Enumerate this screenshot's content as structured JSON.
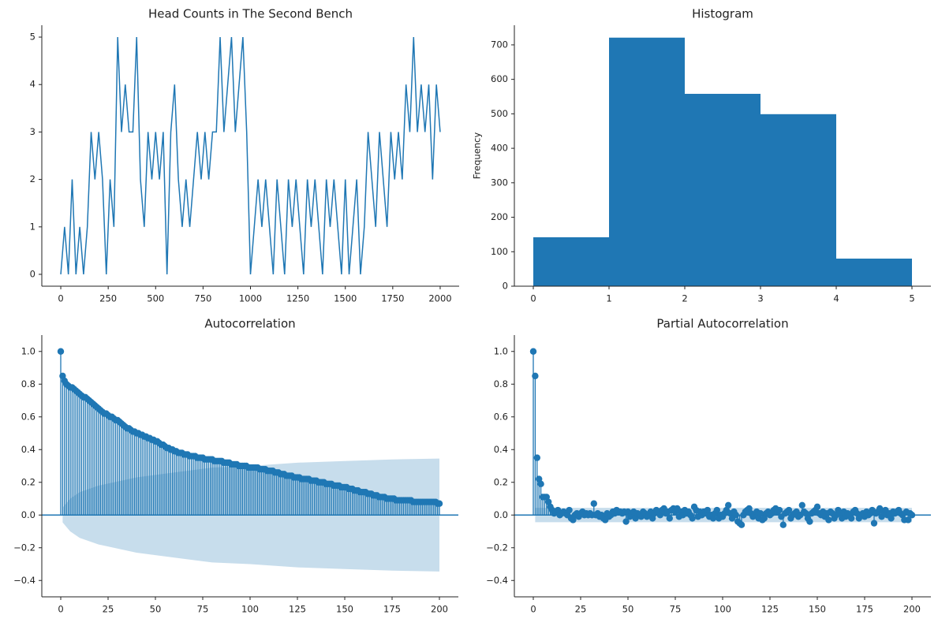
{
  "chart_data": [
    {
      "type": "line",
      "title": "Head Counts in The Second Bench",
      "color": "#1f77b4",
      "x": [
        0,
        20,
        40,
        60,
        80,
        100,
        120,
        140,
        160,
        180,
        200,
        220,
        240,
        260,
        280,
        300,
        320,
        340,
        360,
        380,
        400,
        420,
        440,
        460,
        480,
        500,
        520,
        540,
        560,
        580,
        600,
        620,
        640,
        660,
        680,
        700,
        720,
        740,
        760,
        780,
        800,
        820,
        840,
        860,
        880,
        900,
        920,
        940,
        960,
        980,
        1000,
        1020,
        1040,
        1060,
        1080,
        1100,
        1120,
        1140,
        1160,
        1180,
        1200,
        1220,
        1240,
        1260,
        1280,
        1300,
        1320,
        1340,
        1360,
        1380,
        1400,
        1420,
        1440,
        1460,
        1480,
        1500,
        1520,
        1540,
        1560,
        1580,
        1600,
        1620,
        1640,
        1660,
        1680,
        1700,
        1720,
        1740,
        1760,
        1780,
        1800,
        1820,
        1840,
        1860,
        1880,
        1900,
        1920,
        1940,
        1960,
        1980,
        2000
      ],
      "values": [
        0,
        1,
        0,
        2,
        0,
        1,
        0,
        1,
        3,
        2,
        3,
        2,
        0,
        2,
        1,
        5,
        3,
        4,
        3,
        3,
        5,
        2,
        1,
        3,
        2,
        3,
        2,
        3,
        0,
        3,
        4,
        2,
        1,
        2,
        1,
        2,
        3,
        2,
        3,
        2,
        3,
        3,
        5,
        3,
        4,
        5,
        3,
        4,
        5,
        3,
        0,
        1,
        2,
        1,
        2,
        1,
        0,
        2,
        1,
        0,
        2,
        1,
        2,
        1,
        0,
        2,
        1,
        2,
        1,
        0,
        2,
        1,
        2,
        1,
        0,
        2,
        0,
        1,
        2,
        0,
        1,
        3,
        2,
        1,
        3,
        2,
        1,
        3,
        2,
        3,
        2,
        4,
        3,
        5,
        3,
        4,
        3,
        4,
        2,
        4,
        3
      ],
      "xlim": [
        -100,
        2100
      ],
      "xticks": [
        0,
        250,
        500,
        750,
        1000,
        1250,
        1500,
        1750,
        2000
      ],
      "ylim": [
        -0.25,
        5.25
      ],
      "yticks": [
        0,
        1,
        2,
        3,
        4,
        5
      ]
    },
    {
      "type": "histogram",
      "title": "Histogram",
      "ylabel": "Frequency",
      "color": "#1f77b4",
      "bins": [
        0,
        1,
        2,
        3,
        4,
        5
      ],
      "values": [
        142,
        721,
        558,
        499,
        80
      ],
      "xlim": [
        -0.25,
        5.25
      ],
      "xticks": [
        0,
        1,
        2,
        3,
        4,
        5
      ],
      "ylim": [
        0,
        757
      ],
      "yticks": [
        0,
        100,
        200,
        300,
        400,
        500,
        600,
        700
      ]
    },
    {
      "type": "stem",
      "title": "Autocorrelation",
      "color": "#1f77b4",
      "x": [
        0,
        1,
        2,
        3,
        4,
        5,
        6,
        7,
        8,
        9,
        10,
        11,
        12,
        13,
        14,
        15,
        16,
        17,
        18,
        19,
        20,
        21,
        22,
        23,
        24,
        25,
        26,
        27,
        28,
        29,
        30,
        31,
        32,
        33,
        34,
        35,
        36,
        37,
        38,
        39,
        40,
        41,
        42,
        43,
        44,
        45,
        46,
        47,
        48,
        49,
        50,
        51,
        52,
        53,
        54,
        55,
        56,
        57,
        58,
        59,
        60,
        61,
        62,
        63,
        64,
        65,
        66,
        67,
        68,
        69,
        70,
        71,
        72,
        73,
        74,
        75,
        76,
        77,
        78,
        79,
        80,
        81,
        82,
        83,
        84,
        85,
        86,
        87,
        88,
        89,
        90,
        91,
        92,
        93,
        94,
        95,
        96,
        97,
        98,
        99,
        100,
        101,
        102,
        103,
        104,
        105,
        106,
        107,
        108,
        109,
        110,
        111,
        112,
        113,
        114,
        115,
        116,
        117,
        118,
        119,
        120,
        121,
        122,
        123,
        124,
        125,
        126,
        127,
        128,
        129,
        130,
        131,
        132,
        133,
        134,
        135,
        136,
        137,
        138,
        139,
        140,
        141,
        142,
        143,
        144,
        145,
        146,
        147,
        148,
        149,
        150,
        151,
        152,
        153,
        154,
        155,
        156,
        157,
        158,
        159,
        160,
        161,
        162,
        163,
        164,
        165,
        166,
        167,
        168,
        169,
        170,
        171,
        172,
        173,
        174,
        175,
        176,
        177,
        178,
        179,
        180,
        181,
        182,
        183,
        184,
        185,
        186,
        187,
        188,
        189,
        190,
        191,
        192,
        193,
        194,
        195,
        196,
        197,
        198,
        199,
        200
      ],
      "values": [
        1.0,
        0.85,
        0.82,
        0.8,
        0.79,
        0.78,
        0.78,
        0.77,
        0.76,
        0.75,
        0.74,
        0.73,
        0.72,
        0.72,
        0.71,
        0.7,
        0.69,
        0.68,
        0.67,
        0.66,
        0.65,
        0.64,
        0.63,
        0.62,
        0.62,
        0.61,
        0.6,
        0.6,
        0.59,
        0.58,
        0.58,
        0.57,
        0.56,
        0.55,
        0.54,
        0.53,
        0.53,
        0.52,
        0.51,
        0.51,
        0.5,
        0.5,
        0.49,
        0.49,
        0.48,
        0.48,
        0.47,
        0.47,
        0.46,
        0.46,
        0.45,
        0.45,
        0.44,
        0.43,
        0.43,
        0.42,
        0.41,
        0.41,
        0.4,
        0.4,
        0.39,
        0.39,
        0.38,
        0.38,
        0.38,
        0.37,
        0.37,
        0.37,
        0.36,
        0.36,
        0.36,
        0.36,
        0.35,
        0.35,
        0.35,
        0.35,
        0.34,
        0.34,
        0.34,
        0.34,
        0.34,
        0.33,
        0.33,
        0.33,
        0.33,
        0.33,
        0.32,
        0.32,
        0.32,
        0.32,
        0.31,
        0.31,
        0.31,
        0.31,
        0.3,
        0.3,
        0.3,
        0.3,
        0.3,
        0.29,
        0.29,
        0.29,
        0.29,
        0.29,
        0.29,
        0.28,
        0.28,
        0.28,
        0.28,
        0.27,
        0.27,
        0.27,
        0.27,
        0.26,
        0.26,
        0.26,
        0.25,
        0.25,
        0.25,
        0.24,
        0.24,
        0.24,
        0.24,
        0.23,
        0.23,
        0.23,
        0.23,
        0.22,
        0.22,
        0.22,
        0.22,
        0.22,
        0.21,
        0.21,
        0.21,
        0.21,
        0.2,
        0.2,
        0.2,
        0.2,
        0.19,
        0.19,
        0.19,
        0.19,
        0.18,
        0.18,
        0.18,
        0.18,
        0.17,
        0.17,
        0.17,
        0.17,
        0.16,
        0.16,
        0.16,
        0.15,
        0.15,
        0.15,
        0.14,
        0.14,
        0.14,
        0.14,
        0.13,
        0.13,
        0.13,
        0.12,
        0.12,
        0.12,
        0.11,
        0.11,
        0.11,
        0.11,
        0.1,
        0.1,
        0.1,
        0.1,
        0.1,
        0.09,
        0.09,
        0.09,
        0.09,
        0.09,
        0.09,
        0.09,
        0.09,
        0.09,
        0.08,
        0.08,
        0.08,
        0.08,
        0.08,
        0.08,
        0.08,
        0.08,
        0.08,
        0.08,
        0.08,
        0.08,
        0.08,
        0.07,
        0.07
      ],
      "band": {
        "x": [
          1,
          5,
          10,
          20,
          40,
          60,
          80,
          100,
          125,
          150,
          175,
          200
        ],
        "upper": [
          0.045,
          0.1,
          0.14,
          0.18,
          0.23,
          0.26,
          0.29,
          0.3,
          0.32,
          0.33,
          0.34,
          0.345
        ],
        "lower": [
          -0.045,
          -0.1,
          -0.14,
          -0.18,
          -0.23,
          -0.26,
          -0.29,
          -0.3,
          -0.32,
          -0.33,
          -0.34,
          -0.345
        ]
      },
      "xlim": [
        -10,
        210
      ],
      "xticks": [
        0,
        25,
        50,
        75,
        100,
        125,
        150,
        175,
        200
      ],
      "ylim": [
        -0.5,
        1.1
      ],
      "yticks": [
        {
          "value": -0.4,
          "label": "−0.4"
        },
        {
          "value": -0.2,
          "label": "−0.2"
        },
        {
          "value": 0,
          "label": "0.0"
        },
        0.2,
        0.4,
        0.6,
        0.8,
        {
          "value": 1,
          "label": "1.0"
        }
      ]
    },
    {
      "type": "stem",
      "title": "Partial Autocorrelation",
      "color": "#1f77b4",
      "x": [
        0,
        1,
        2,
        3,
        4,
        5,
        6,
        7,
        8,
        9,
        10,
        11,
        12,
        13,
        14,
        15,
        16,
        17,
        18,
        19,
        20,
        21,
        22,
        23,
        24,
        25,
        26,
        27,
        28,
        29,
        30,
        31,
        32,
        33,
        34,
        35,
        36,
        37,
        38,
        39,
        40,
        41,
        42,
        43,
        44,
        45,
        46,
        47,
        48,
        49,
        50,
        51,
        52,
        53,
        54,
        55,
        56,
        57,
        58,
        59,
        60,
        61,
        62,
        63,
        64,
        65,
        66,
        67,
        68,
        69,
        70,
        71,
        72,
        73,
        74,
        75,
        76,
        77,
        78,
        79,
        80,
        81,
        82,
        83,
        84,
        85,
        86,
        87,
        88,
        89,
        90,
        91,
        92,
        93,
        94,
        95,
        96,
        97,
        98,
        99,
        100,
        101,
        102,
        103,
        104,
        105,
        106,
        107,
        108,
        109,
        110,
        111,
        112,
        113,
        114,
        115,
        116,
        117,
        118,
        119,
        120,
        121,
        122,
        123,
        124,
        125,
        126,
        127,
        128,
        129,
        130,
        131,
        132,
        133,
        134,
        135,
        136,
        137,
        138,
        139,
        140,
        141,
        142,
        143,
        144,
        145,
        146,
        147,
        148,
        149,
        150,
        151,
        152,
        153,
        154,
        155,
        156,
        157,
        158,
        159,
        160,
        161,
        162,
        163,
        164,
        165,
        166,
        167,
        168,
        169,
        170,
        171,
        172,
        173,
        174,
        175,
        176,
        177,
        178,
        179,
        180,
        181,
        182,
        183,
        184,
        185,
        186,
        187,
        188,
        189,
        190,
        191,
        192,
        193,
        194,
        195,
        196,
        197,
        198,
        199,
        200
      ],
      "values": [
        1.0,
        0.85,
        0.35,
        0.22,
        0.19,
        0.11,
        0.11,
        0.11,
        0.08,
        0.05,
        0.03,
        0.01,
        0.02,
        0.03,
        0.0,
        0.01,
        0.02,
        0.01,
        0.0,
        0.03,
        -0.02,
        -0.03,
        0.0,
        0.01,
        -0.01,
        0.01,
        0.02,
        0.0,
        0.01,
        0.0,
        0.01,
        0.0,
        0.07,
        0.0,
        0.01,
        -0.01,
        0.0,
        -0.02,
        -0.03,
        0.01,
        -0.01,
        0.0,
        0.02,
        0.01,
        0.03,
        0.02,
        0.02,
        0.01,
        0.02,
        -0.04,
        0.02,
        -0.01,
        0.01,
        0.02,
        -0.02,
        0.01,
        0.0,
        -0.01,
        0.02,
        0.01,
        -0.01,
        0.0,
        0.02,
        -0.02,
        0.01,
        0.03,
        0.02,
        0.0,
        0.03,
        0.04,
        0.01,
        0.02,
        -0.02,
        0.03,
        0.04,
        0.02,
        0.04,
        -0.01,
        0.02,
        0.0,
        0.03,
        0.01,
        0.02,
        0.0,
        -0.02,
        0.05,
        0.03,
        -0.01,
        0.02,
        0.0,
        0.02,
        0.01,
        0.03,
        -0.01,
        0.0,
        -0.02,
        0.01,
        0.03,
        -0.02,
        0.0,
        -0.01,
        0.01,
        0.03,
        0.06,
        0.01,
        -0.02,
        0.02,
        0.0,
        -0.04,
        -0.05,
        -0.06,
        0.0,
        0.02,
        0.03,
        0.04,
        0.01,
        -0.01,
        0.0,
        0.02,
        -0.02,
        0.01,
        -0.03,
        -0.02,
        0.01,
        0.02,
        0.0,
        0.01,
        0.03,
        0.04,
        0.02,
        0.03,
        -0.01,
        -0.06,
        0.01,
        0.02,
        0.03,
        -0.02,
        0.0,
        0.01,
        0.02,
        -0.01,
        0.0,
        0.06,
        0.02,
        0.01,
        -0.02,
        -0.04,
        0.01,
        0.02,
        0.03,
        0.05,
        0.01,
        0.0,
        0.02,
        -0.01,
        0.01,
        -0.03,
        0.02,
        0.01,
        -0.02,
        0.0,
        0.03,
        0.01,
        -0.02,
        0.02,
        -0.01,
        0.01,
        0.0,
        -0.02,
        0.02,
        0.03,
        0.01,
        -0.02,
        0.0,
        0.01,
        -0.01,
        0.02,
        0.0,
        0.01,
        0.03,
        -0.05,
        0.01,
        0.02,
        0.04,
        -0.01,
        0.02,
        0.03,
        0.0,
        0.01,
        -0.02,
        0.02,
        0.01,
        0.02,
        0.03,
        0.01,
        0.0,
        -0.03,
        0.02,
        -0.03,
        0.01,
        0.0
      ],
      "band": {
        "x": [
          1,
          200
        ],
        "upper": [
          0.044,
          0.044
        ],
        "lower": [
          -0.044,
          -0.044
        ]
      },
      "xlim": [
        -10,
        210
      ],
      "xticks": [
        0,
        25,
        50,
        75,
        100,
        125,
        150,
        175,
        200
      ],
      "ylim": [
        -0.5,
        1.1
      ],
      "yticks": [
        {
          "value": -0.4,
          "label": "−0.4"
        },
        {
          "value": -0.2,
          "label": "−0.2"
        },
        {
          "value": 0,
          "label": "0.0"
        },
        0.2,
        0.4,
        0.6,
        0.8,
        {
          "value": 1,
          "label": "1.0"
        }
      ]
    }
  ]
}
